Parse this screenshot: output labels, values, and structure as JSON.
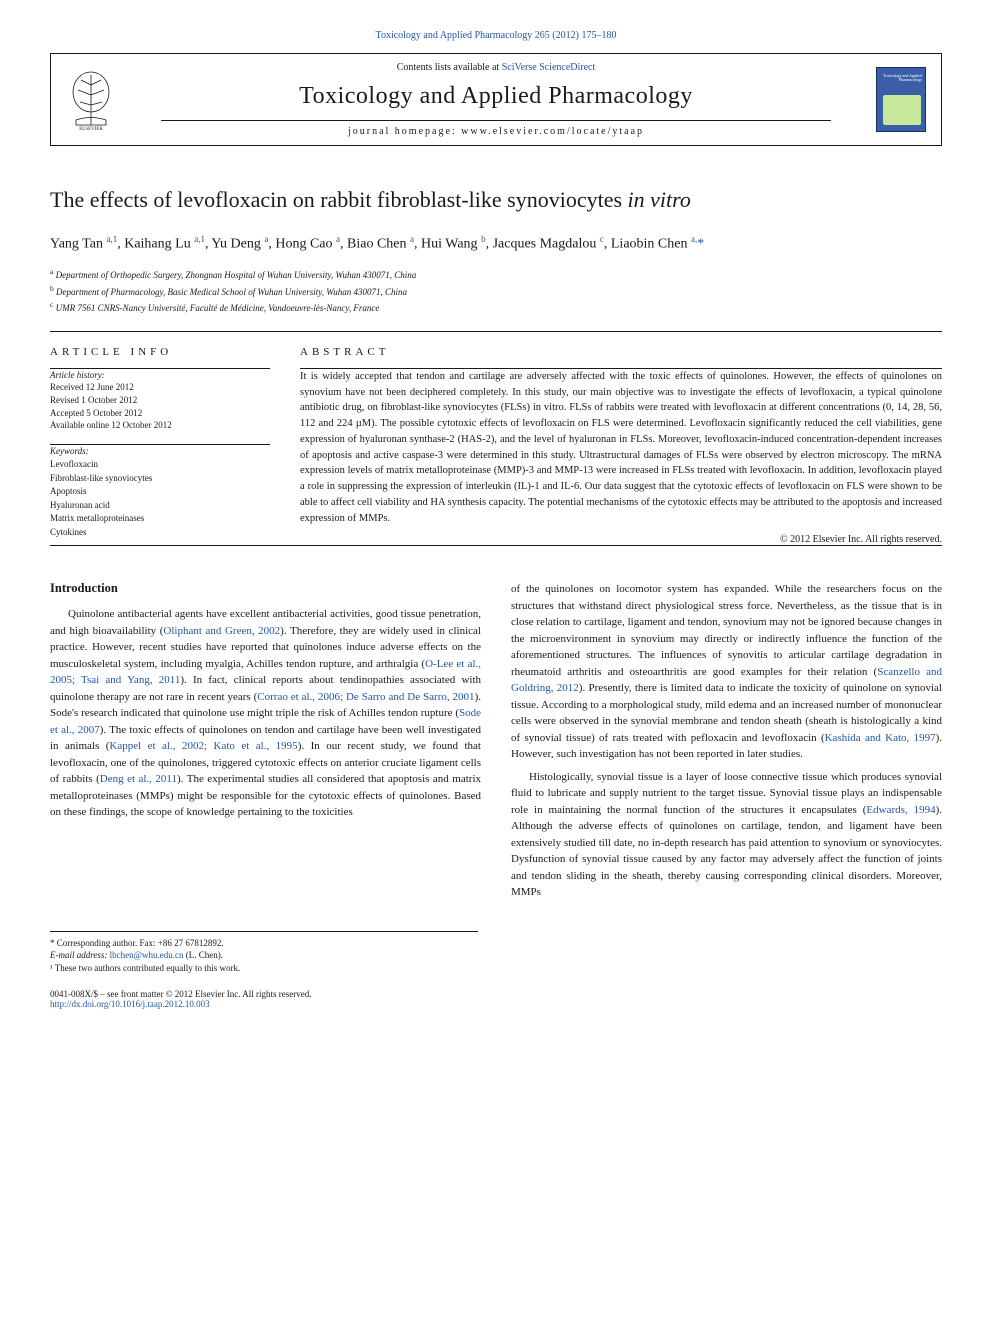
{
  "journal_ref": "Toxicology and Applied Pharmacology 265 (2012) 175–180",
  "banner": {
    "contents_prefix": "Contents lists available at ",
    "contents_link": "SciVerse ScienceDirect",
    "journal_title": "Toxicology and Applied Pharmacology",
    "homepage_prefix": "journal homepage: ",
    "homepage": "www.elsevier.com/locate/ytaap",
    "cover_text": "Toxicology\nand Applied\nPharmacology"
  },
  "article": {
    "title_plain": "The effects of levofloxacin on rabbit fibroblast-like synoviocytes ",
    "title_italic": "in vitro",
    "authors_html": "Yang Tan <sup>a,1</sup>, Kaihang Lu <sup>a,1</sup>, Yu Deng <sup>a</sup>, Hong Cao <sup>a</sup>, Biao Chen <sup>a</sup>, Hui Wang <sup>b</sup>, Jacques Magdalou <sup>c</sup>, Liaobin Chen <sup>a,</sup><span class='corr'>*</span>",
    "affiliations": {
      "a": "Department of Orthopedic Surgery, Zhongnan Hospital of Wuhan University, Wuhan 430071, China",
      "b": "Department of Pharmacology, Basic Medical School of Wuhan University, Wuhan 430071, China",
      "c": "UMR 7561 CNRS-Nancy Université, Faculté de Médicine, Vandoeuvre-lès-Nancy, France"
    }
  },
  "info": {
    "section_label": "article info",
    "history_label": "Article history:",
    "history": [
      "Received 12 June 2012",
      "Revised 1 October 2012",
      "Accepted 5 October 2012",
      "Available online 12 October 2012"
    ],
    "keywords_label": "Keywords:",
    "keywords": [
      "Levofloxacin",
      "Fibroblast-like synoviocytes",
      "Apoptosis",
      "Hyaluronan acid",
      "Matrix metalloproteinases",
      "Cytokines"
    ]
  },
  "abstract": {
    "section_label": "abstract",
    "text": "It is widely accepted that tendon and cartilage are adversely affected with the toxic effects of quinolones. However, the effects of quinolones on synovium have not been deciphered completely. In this study, our main objective was to investigate the effects of levofloxacin, a typical quinolone antibiotic drug, on fibroblast-like synoviocytes (FLSs) in vitro. FLSs of rabbits were treated with levofloxacin at different concentrations (0, 14, 28, 56, 112 and 224 µM). The possible cytotoxic effects of levofloxacin on FLS were determined. Levofloxacin significantly reduced the cell viabilities, gene expression of hyaluronan synthase-2 (HAS-2), and the level of hyaluronan in FLSs. Moreover, levofloxacin-induced concentration-dependent increases of apoptosis and active caspase-3 were determined in this study. Ultrastructural damages of FLSs were observed by electron microscopy. The mRNA expression levels of matrix metalloproteinase (MMP)-3 and MMP-13 were increased in FLSs treated with levofloxacin. In addition, levofloxacin played a role in suppressing the expression of interleukin (IL)-1 and IL-6. Our data suggest that the cytotoxic effects of levofloxacin on FLS were shown to be able to affect cell viability and HA synthesis capacity. The potential mechanisms of the cytotoxic effects may be attributed to the apoptosis and increased expression of MMPs.",
    "copyright": "© 2012 Elsevier Inc. All rights reserved."
  },
  "body": {
    "heading": "Introduction",
    "col1_p1": "Quinolone antibacterial agents have excellent antibacterial activities, good tissue penetration, and high bioavailability (<span class='cite'>Oliphant and Green, 2002</span>). Therefore, they are widely used in clinical practice. However, recent studies have reported that quinolones induce adverse effects on the musculoskeletal system, including myalgia, Achilles tendon rupture, and arthralgia (<span class='cite'>O-Lee et al., 2005; Tsai and Yang, 2011</span>). In fact, clinical reports about tendinopathies associated with quinolone therapy are not rare in recent years (<span class='cite'>Corrao et al., 2006; De Sarro and De Sarro, 2001</span>). Sode's research indicated that quinolone use might triple the risk of Achilles tendon rupture (<span class='cite'>Sode et al., 2007</span>). The toxic effects of quinolones on tendon and cartilage have been well investigated in animals (<span class='cite'>Kappel et al., 2002; Kato et al., 1995</span>). In our recent study, we found that levofloxacin, one of the quinolones, triggered cytotoxic effects on anterior cruciate ligament cells of rabbits (<span class='cite'>Deng et al., 2011</span>). The experimental studies all considered that apoptosis and matrix metalloproteinases (MMPs) might be responsible for the cytotoxic effects of quinolones. Based on these findings, the scope of knowledge pertaining to the toxicities",
    "col2_p1": "of the quinolones on locomotor system has expanded. While the researchers focus on the structures that withstand direct physiological stress force. Nevertheless, as the tissue that is in close relation to cartilage, ligament and tendon, synovium may not be ignored because changes in the microenvironment in synovium may directly or indirectly influence the function of the aforementioned structures. The influences of synovitis to articular cartilage degradation in rheumatoid arthritis and osteoarthritis are good examples for their relation (<span class='cite'>Scanzello and Goldring, 2012</span>). Presently, there is limited data to indicate the toxicity of quinolone on synovial tissue. According to a morphological study, mild edema and an increased number of mononuclear cells were observed in the synovial membrane and tendon sheath (sheath is histologically a kind of synovial tissue) of rats treated with pefloxacin and levofloxacin (<span class='cite'>Kashida and Kato, 1997</span>). However, such investigation has not been reported in later studies.",
    "col2_p2": "Histologically, synovial tissue is a layer of loose connective tissue which produces synovial fluid to lubricate and supply nutrient to the target tissue. Synovial tissue plays an indispensable role in maintaining the normal function of the structures it encapsulates (<span class='cite'>Edwards, 1994</span>). Although the adverse effects of quinolones on cartilage, tendon, and ligament have been extensively studied till date, no in-depth research has paid attention to synovium or synoviocytes. Dysfunction of synovial tissue caused by any factor may adversely affect the function of joints and tendon sliding in the sheath, thereby causing corresponding clinical disorders. Moreover, MMPs"
  },
  "footnotes": {
    "corr": "* Corresponding author. Fax: +86 27 67812892.",
    "email_label": "E-mail address: ",
    "email": "lbchen@whu.edu.cn",
    "email_suffix": " (L. Chen).",
    "equal": "¹ These two authors contributed equally to this work."
  },
  "footer": {
    "left_line1": "0041-008X/$ – see front matter © 2012 Elsevier Inc. All rights reserved.",
    "doi": "http://dx.doi.org/10.1016/j.taap.2012.10.003"
  },
  "colors": {
    "link": "#2156a5",
    "text": "#1a1a1a",
    "cover_bg": "#3a5fa8",
    "cover_inner": "#c7e89b"
  },
  "typography": {
    "body_fontsize": 11,
    "abstract_fontsize": 10.5,
    "title_fontsize": 22,
    "journal_title_fontsize": 24,
    "small_fontsize": 9
  }
}
